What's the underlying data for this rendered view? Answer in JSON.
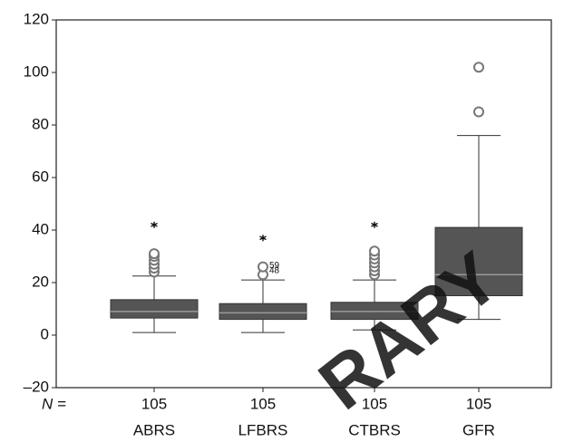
{
  "chart_data": {
    "type": "box",
    "categories": [
      "ABRS",
      "LFBRS",
      "CTBRS",
      "GFR"
    ],
    "n_label": "N =",
    "n": [
      105,
      105,
      105,
      105
    ],
    "boxes": [
      {
        "whisker_low": 1,
        "q1": 6.5,
        "median": 9,
        "q3": 13.5,
        "whisker_high": 22.5,
        "outliers": [
          24,
          25.5,
          27,
          28.5,
          30,
          31
        ],
        "extremes": [
          42
        ]
      },
      {
        "whisker_low": 1,
        "q1": 6,
        "median": 8.5,
        "q3": 12,
        "whisker_high": 21,
        "outliers": [
          23,
          26
        ],
        "extremes": [
          37
        ],
        "outlier_labels": [
          {
            "label": "59",
            "value": 26.5
          },
          {
            "label": "48",
            "value": 24.5
          }
        ]
      },
      {
        "whisker_low": 2,
        "q1": 6,
        "median": 9,
        "q3": 12.5,
        "whisker_high": 21,
        "outliers": [
          23,
          24.5,
          26,
          27.5,
          29,
          30.5,
          32
        ],
        "extremes": [
          42
        ]
      },
      {
        "whisker_low": 6,
        "q1": 15,
        "median": 23,
        "q3": 41,
        "whisker_high": 76,
        "outliers": [
          85,
          102
        ],
        "extremes": []
      }
    ],
    "box_color": "#555555",
    "ylim": [
      -20,
      120
    ],
    "yticks": [
      {
        "value": -20,
        "label": "–20"
      },
      0,
      20,
      40,
      60,
      80,
      100,
      120
    ],
    "watermark": "RARY"
  }
}
